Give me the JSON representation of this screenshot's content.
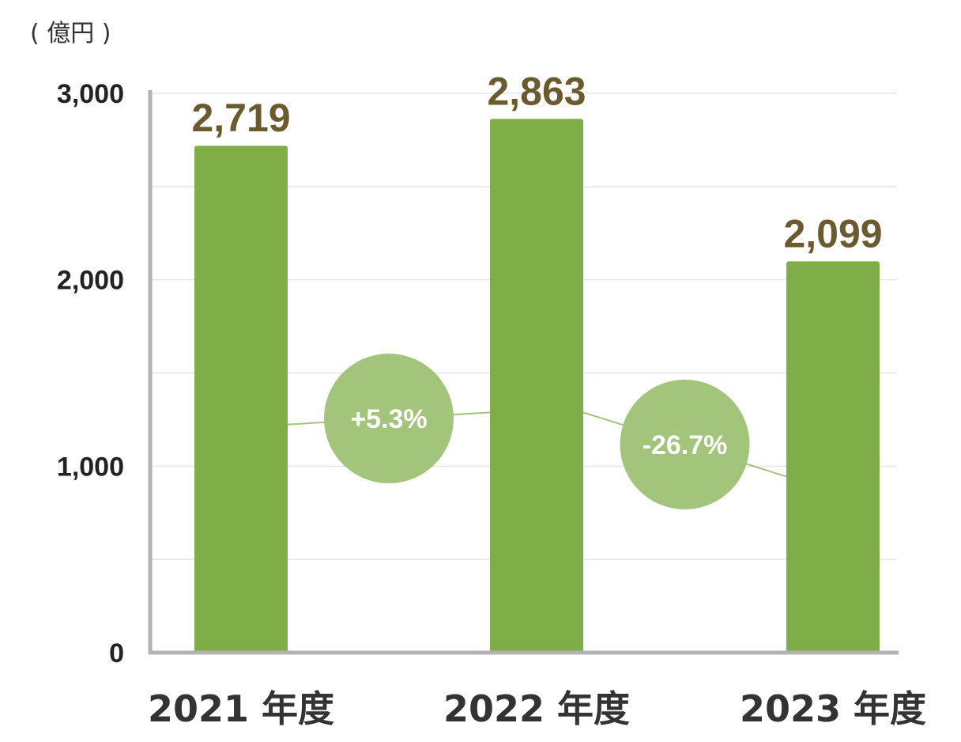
{
  "chart_data": {
    "type": "bar",
    "unit_label": "( 億円 )",
    "categories": [
      "2021 年度",
      "2022 年度",
      "2023 年度"
    ],
    "values": [
      2719,
      2863,
      2099
    ],
    "value_labels": [
      "2,719",
      "2,863",
      "2,099"
    ],
    "ylim": [
      0,
      3000
    ],
    "yticks": [
      0,
      1000,
      2000,
      3000
    ],
    "ytick_labels": [
      "0",
      "1,000",
      "2,000",
      "3,000"
    ],
    "grid": true,
    "growth_badges": [
      {
        "label": "+5.3%",
        "from": 0,
        "to": 1
      },
      {
        "label": "-26.7%",
        "from": 1,
        "to": 2
      }
    ],
    "colors": {
      "bar": "#7fad47",
      "badge": "#a2c47b",
      "value_label": "#6b5a2e",
      "axis": "#b3b3b3",
      "grid": "#e6e6e6"
    }
  }
}
